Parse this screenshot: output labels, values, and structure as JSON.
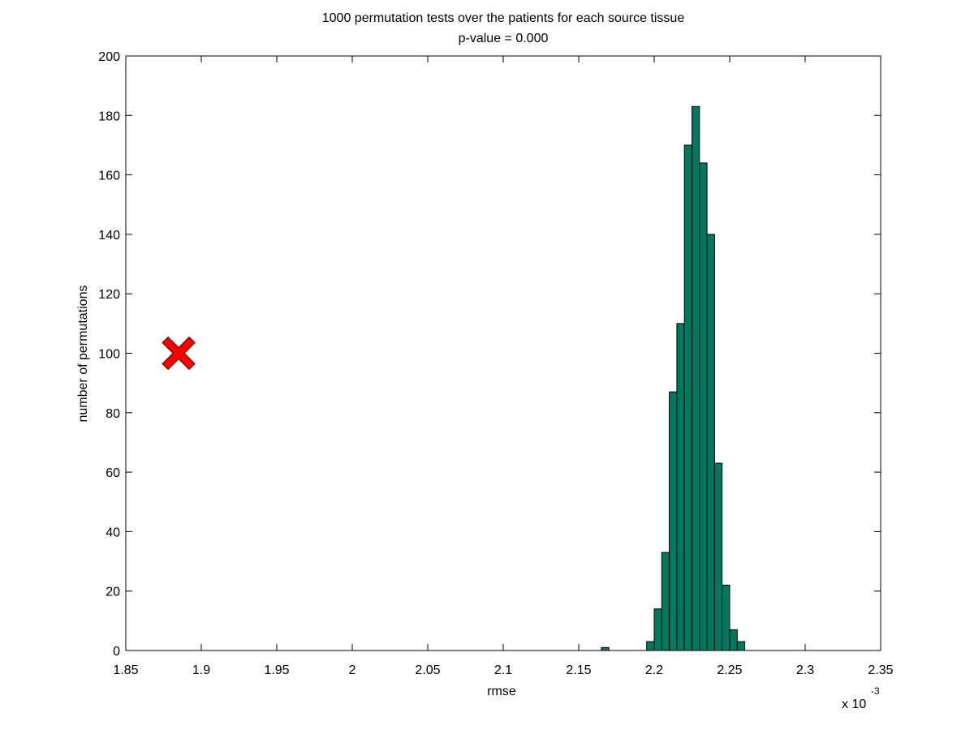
{
  "chart_data": {
    "type": "bar",
    "title": "1000 permutation tests over the patients for each source tissue",
    "subtitle": "p-value = 0.000",
    "xlabel": "rmse",
    "ylabel": "number of permutations",
    "x_exponent_base": "x 10",
    "x_exponent_power": "-3",
    "xlim": [
      1.85,
      2.35
    ],
    "ylim": [
      0,
      200
    ],
    "xticks": [
      1.85,
      1.9,
      1.95,
      2,
      2.05,
      2.1,
      2.15,
      2.2,
      2.25,
      2.3,
      2.35
    ],
    "xtick_labels": [
      "1.85",
      "1.9",
      "1.95",
      "2",
      "2.05",
      "2.1",
      "2.15",
      "2.2",
      "2.25",
      "2.3",
      "2.35"
    ],
    "yticks": [
      0,
      20,
      40,
      60,
      80,
      100,
      120,
      140,
      160,
      180,
      200
    ],
    "ytick_labels": [
      "0",
      "20",
      "40",
      "60",
      "80",
      "100",
      "120",
      "140",
      "160",
      "180",
      "200"
    ],
    "grid": false,
    "bin_width": 0.005,
    "bar_color": "#007860",
    "bar_edge_color": "#000000",
    "bins": [
      {
        "center": 2.1675,
        "value": 1
      },
      {
        "center": 2.1975,
        "value": 3
      },
      {
        "center": 2.2025,
        "value": 14
      },
      {
        "center": 2.2075,
        "value": 33
      },
      {
        "center": 2.2125,
        "value": 87
      },
      {
        "center": 2.2175,
        "value": 110
      },
      {
        "center": 2.2225,
        "value": 170
      },
      {
        "center": 2.2275,
        "value": 183
      },
      {
        "center": 2.2325,
        "value": 164
      },
      {
        "center": 2.2375,
        "value": 140
      },
      {
        "center": 2.2425,
        "value": 63
      },
      {
        "center": 2.2475,
        "value": 22
      },
      {
        "center": 2.2525,
        "value": 7
      },
      {
        "center": 2.2575,
        "value": 3
      }
    ],
    "marker": {
      "x": 1.885,
      "y": 100,
      "shape": "x",
      "color": "#ff0000"
    }
  }
}
